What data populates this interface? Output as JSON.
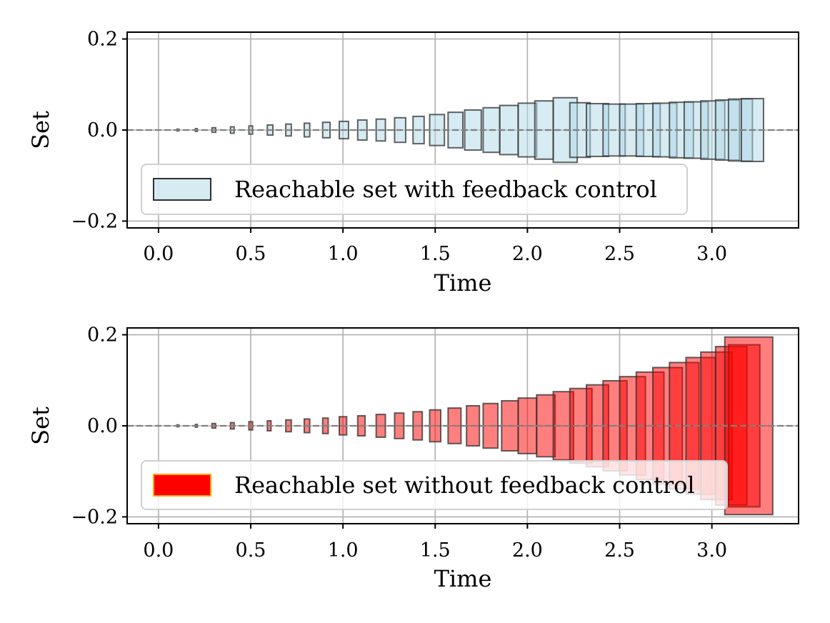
{
  "chart_data": [
    {
      "type": "bar",
      "xlabel": "Time",
      "ylabel": "Set",
      "xticks": [
        "0.0",
        "0.5",
        "1.0",
        "1.5",
        "2.0",
        "2.5",
        "3.0"
      ],
      "yticks": [
        "0.2",
        "0.0",
        "−0.2"
      ],
      "xtick_values": [
        0.0,
        0.5,
        1.0,
        1.5,
        2.0,
        2.5,
        3.0
      ],
      "ytick_values": [
        0.2,
        0.0,
        -0.2
      ],
      "xlim": [
        -0.17,
        3.47
      ],
      "ylim": [
        -0.215,
        0.215
      ],
      "grid": true,
      "zero_line": "dashed",
      "legend": {
        "label": "Reachable set with feedback control",
        "placement": "lower-left"
      },
      "color": "#add8e6",
      "edge_color": "#2f2f2f",
      "alpha": 0.5,
      "boxes": [
        {
          "t0": 0.1,
          "t1": 0.11,
          "lo": -0.002,
          "hi": 0.002
        },
        {
          "t0": 0.2,
          "t1": 0.21,
          "lo": -0.003,
          "hi": 0.003
        },
        {
          "t0": 0.29,
          "t1": 0.31,
          "lo": -0.005,
          "hi": 0.005
        },
        {
          "t0": 0.39,
          "t1": 0.41,
          "lo": -0.007,
          "hi": 0.007
        },
        {
          "t0": 0.49,
          "t1": 0.51,
          "lo": -0.009,
          "hi": 0.009
        },
        {
          "t0": 0.59,
          "t1": 0.62,
          "lo": -0.011,
          "hi": 0.011
        },
        {
          "t0": 0.69,
          "t1": 0.72,
          "lo": -0.013,
          "hi": 0.013
        },
        {
          "t0": 0.79,
          "t1": 0.82,
          "lo": -0.015,
          "hi": 0.015
        },
        {
          "t0": 0.89,
          "t1": 0.93,
          "lo": -0.017,
          "hi": 0.017
        },
        {
          "t0": 0.98,
          "t1": 1.03,
          "lo": -0.019,
          "hi": 0.019
        },
        {
          "t0": 1.08,
          "t1": 1.13,
          "lo": -0.022,
          "hi": 0.022
        },
        {
          "t0": 1.18,
          "t1": 1.23,
          "lo": -0.024,
          "hi": 0.024
        },
        {
          "t0": 1.28,
          "t1": 1.34,
          "lo": -0.027,
          "hi": 0.027
        },
        {
          "t0": 1.38,
          "t1": 1.44,
          "lo": -0.03,
          "hi": 0.03
        },
        {
          "t0": 1.47,
          "t1": 1.55,
          "lo": -0.034,
          "hi": 0.034
        },
        {
          "t0": 1.57,
          "t1": 1.65,
          "lo": -0.039,
          "hi": 0.039
        },
        {
          "t0": 1.66,
          "t1": 1.75,
          "lo": -0.044,
          "hi": 0.044
        },
        {
          "t0": 1.76,
          "t1": 1.85,
          "lo": -0.049,
          "hi": 0.049
        },
        {
          "t0": 1.85,
          "t1": 1.95,
          "lo": -0.054,
          "hi": 0.054
        },
        {
          "t0": 1.95,
          "t1": 2.05,
          "lo": -0.059,
          "hi": 0.059
        },
        {
          "t0": 2.04,
          "t1": 2.14,
          "lo": -0.064,
          "hi": 0.064
        },
        {
          "t0": 2.14,
          "t1": 2.27,
          "lo": -0.071,
          "hi": 0.071
        },
        {
          "t0": 2.23,
          "t1": 2.34,
          "lo": -0.06,
          "hi": 0.06
        },
        {
          "t0": 2.32,
          "t1": 2.44,
          "lo": -0.058,
          "hi": 0.058
        },
        {
          "t0": 2.41,
          "t1": 2.53,
          "lo": -0.057,
          "hi": 0.057
        },
        {
          "t0": 2.5,
          "t1": 2.63,
          "lo": -0.057,
          "hi": 0.057
        },
        {
          "t0": 2.59,
          "t1": 2.72,
          "lo": -0.058,
          "hi": 0.058
        },
        {
          "t0": 2.68,
          "t1": 2.81,
          "lo": -0.059,
          "hi": 0.059
        },
        {
          "t0": 2.77,
          "t1": 2.9,
          "lo": -0.061,
          "hi": 0.061
        },
        {
          "t0": 2.85,
          "t1": 2.98,
          "lo": -0.062,
          "hi": 0.062
        },
        {
          "t0": 2.94,
          "t1": 3.07,
          "lo": -0.064,
          "hi": 0.064
        },
        {
          "t0": 3.02,
          "t1": 3.15,
          "lo": -0.066,
          "hi": 0.066
        },
        {
          "t0": 3.09,
          "t1": 3.22,
          "lo": -0.068,
          "hi": 0.068
        },
        {
          "t0": 3.16,
          "t1": 3.28,
          "lo": -0.069,
          "hi": 0.069
        }
      ]
    },
    {
      "type": "bar",
      "xlabel": "Time",
      "ylabel": "Set",
      "xticks": [
        "0.0",
        "0.5",
        "1.0",
        "1.5",
        "2.0",
        "2.5",
        "3.0"
      ],
      "yticks": [
        "0.2",
        "0.0",
        "−0.2"
      ],
      "xtick_values": [
        0.0,
        0.5,
        1.0,
        1.5,
        2.0,
        2.5,
        3.0
      ],
      "ytick_values": [
        0.2,
        0.0,
        -0.2
      ],
      "xlim": [
        -0.17,
        3.47
      ],
      "ylim": [
        -0.215,
        0.215
      ],
      "grid": true,
      "zero_line": "dashed",
      "legend": {
        "label": "Reachable set without feedback control",
        "placement": "lower-left"
      },
      "color": "#ff0000",
      "edge_color": "#2f2f2f",
      "legend_edge_color": "#ffa500",
      "alpha": 0.5,
      "boxes": [
        {
          "t0": 0.1,
          "t1": 0.11,
          "lo": -0.002,
          "hi": 0.002
        },
        {
          "t0": 0.2,
          "t1": 0.21,
          "lo": -0.003,
          "hi": 0.003
        },
        {
          "t0": 0.29,
          "t1": 0.31,
          "lo": -0.005,
          "hi": 0.005
        },
        {
          "t0": 0.39,
          "t1": 0.41,
          "lo": -0.007,
          "hi": 0.007
        },
        {
          "t0": 0.49,
          "t1": 0.51,
          "lo": -0.009,
          "hi": 0.009
        },
        {
          "t0": 0.59,
          "t1": 0.61,
          "lo": -0.011,
          "hi": 0.011
        },
        {
          "t0": 0.69,
          "t1": 0.72,
          "lo": -0.013,
          "hi": 0.013
        },
        {
          "t0": 0.79,
          "t1": 0.82,
          "lo": -0.015,
          "hi": 0.015
        },
        {
          "t0": 0.89,
          "t1": 0.92,
          "lo": -0.017,
          "hi": 0.017
        },
        {
          "t0": 0.98,
          "t1": 1.02,
          "lo": -0.02,
          "hi": 0.02
        },
        {
          "t0": 1.08,
          "t1": 1.12,
          "lo": -0.022,
          "hi": 0.022
        },
        {
          "t0": 1.18,
          "t1": 1.23,
          "lo": -0.025,
          "hi": 0.025
        },
        {
          "t0": 1.28,
          "t1": 1.33,
          "lo": -0.028,
          "hi": 0.028
        },
        {
          "t0": 1.38,
          "t1": 1.43,
          "lo": -0.031,
          "hi": 0.031
        },
        {
          "t0": 1.47,
          "t1": 1.53,
          "lo": -0.035,
          "hi": 0.035
        },
        {
          "t0": 1.57,
          "t1": 1.64,
          "lo": -0.039,
          "hi": 0.039
        },
        {
          "t0": 1.67,
          "t1": 1.74,
          "lo": -0.044,
          "hi": 0.044
        },
        {
          "t0": 1.76,
          "t1": 1.84,
          "lo": -0.049,
          "hi": 0.049
        },
        {
          "t0": 1.86,
          "t1": 1.95,
          "lo": -0.055,
          "hi": 0.055
        },
        {
          "t0": 1.95,
          "t1": 2.05,
          "lo": -0.061,
          "hi": 0.061
        },
        {
          "t0": 2.05,
          "t1": 2.15,
          "lo": -0.068,
          "hi": 0.068
        },
        {
          "t0": 2.14,
          "t1": 2.25,
          "lo": -0.075,
          "hi": 0.075
        },
        {
          "t0": 2.23,
          "t1": 2.35,
          "lo": -0.082,
          "hi": 0.082
        },
        {
          "t0": 2.32,
          "t1": 2.44,
          "lo": -0.09,
          "hi": 0.09
        },
        {
          "t0": 2.41,
          "t1": 2.54,
          "lo": -0.099,
          "hi": 0.099
        },
        {
          "t0": 2.5,
          "t1": 2.64,
          "lo": -0.108,
          "hi": 0.108
        },
        {
          "t0": 2.59,
          "t1": 2.74,
          "lo": -0.118,
          "hi": 0.118
        },
        {
          "t0": 2.68,
          "t1": 2.84,
          "lo": -0.128,
          "hi": 0.128
        },
        {
          "t0": 2.77,
          "t1": 2.93,
          "lo": -0.139,
          "hi": 0.139
        },
        {
          "t0": 2.86,
          "t1": 3.02,
          "lo": -0.15,
          "hi": 0.15
        },
        {
          "t0": 2.94,
          "t1": 3.11,
          "lo": -0.162,
          "hi": 0.162
        },
        {
          "t0": 3.02,
          "t1": 3.19,
          "lo": -0.174,
          "hi": 0.174
        },
        {
          "t0": 3.09,
          "t1": 3.26,
          "lo": -0.178,
          "hi": 0.178
        },
        {
          "t0": 3.07,
          "t1": 3.33,
          "lo": -0.195,
          "hi": 0.195
        }
      ]
    }
  ]
}
